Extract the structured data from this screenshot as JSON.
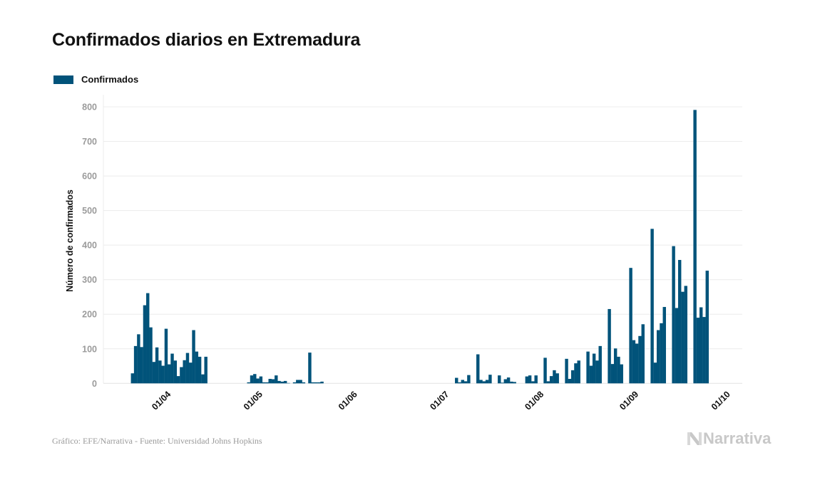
{
  "chart_data": {
    "type": "bar",
    "title": "Confirmados diarios en Extremadura",
    "ylabel": "Número de confirmados",
    "xlabel": "",
    "ylim": [
      0,
      800
    ],
    "yticks": [
      0,
      100,
      200,
      300,
      400,
      500,
      600,
      700,
      800
    ],
    "xlim": [
      "11/03",
      "06/10"
    ],
    "xticks": [
      "01/04",
      "01/05",
      "01/06",
      "01/07",
      "01/08",
      "01/09",
      "01/10"
    ],
    "grid": "horizontal",
    "legend_position": "top-left",
    "color": "#01537a",
    "series": [
      {
        "name": "Confirmados",
        "dates": [
          "20/03",
          "21/03",
          "22/03",
          "23/03",
          "24/03",
          "25/03",
          "26/03",
          "27/03",
          "28/03",
          "29/03",
          "30/03",
          "31/03",
          "01/04",
          "02/04",
          "03/04",
          "04/04",
          "05/04",
          "06/04",
          "07/04",
          "08/04",
          "09/04",
          "10/04",
          "11/04",
          "12/04",
          "13/04",
          "27/04",
          "28/04",
          "29/04",
          "30/04",
          "01/05",
          "02/05",
          "03/05",
          "04/05",
          "05/05",
          "06/05",
          "07/05",
          "08/05",
          "09/05",
          "10/05",
          "12/05",
          "13/05",
          "14/05",
          "15/05",
          "17/05",
          "18/05",
          "19/05",
          "20/05",
          "21/05",
          "04/07",
          "05/07",
          "06/07",
          "07/07",
          "08/07",
          "11/07",
          "12/07",
          "13/07",
          "14/07",
          "15/07",
          "18/07",
          "19/07",
          "20/07",
          "21/07",
          "22/07",
          "23/07",
          "27/07",
          "28/07",
          "29/07",
          "30/07",
          "02/08",
          "03/08",
          "04/08",
          "05/08",
          "06/08",
          "09/08",
          "10/08",
          "11/08",
          "12/08",
          "13/08",
          "16/08",
          "17/08",
          "18/08",
          "19/08",
          "20/08",
          "23/08",
          "24/08",
          "25/08",
          "26/08",
          "27/08",
          "30/08",
          "31/08",
          "01/09",
          "02/09",
          "03/09",
          "06/09",
          "07/09",
          "08/09",
          "09/09",
          "10/09",
          "13/09",
          "14/09",
          "15/09",
          "16/09",
          "17/09",
          "20/09",
          "21/09",
          "22/09",
          "23/09",
          "24/09"
        ],
        "values": [
          29,
          108,
          142,
          105,
          226,
          261,
          162,
          62,
          104,
          66,
          51,
          158,
          55,
          86,
          66,
          21,
          47,
          67,
          88,
          60,
          154,
          92,
          77,
          26,
          77,
          3,
          23,
          27,
          14,
          20,
          3,
          3,
          13,
          12,
          23,
          7,
          5,
          7,
          1,
          3,
          10,
          10,
          3,
          89,
          3,
          3,
          3,
          5,
          16,
          3,
          10,
          6,
          24,
          84,
          10,
          6,
          10,
          25,
          23,
          2,
          12,
          17,
          5,
          4,
          20,
          23,
          6,
          23,
          74,
          6,
          21,
          38,
          29,
          71,
          13,
          38,
          58,
          66,
          92,
          51,
          86,
          66,
          108,
          215,
          56,
          101,
          77,
          55,
          334,
          125,
          115,
          137,
          171,
          447,
          60,
          154,
          174,
          221,
          397,
          218,
          357,
          265,
          282,
          791,
          190,
          220,
          192,
          326
        ]
      }
    ]
  },
  "source": "Gráfico: EFE/Narrativa - Fuente: Universidad Johns Hopkins",
  "logo": "Narrativa"
}
